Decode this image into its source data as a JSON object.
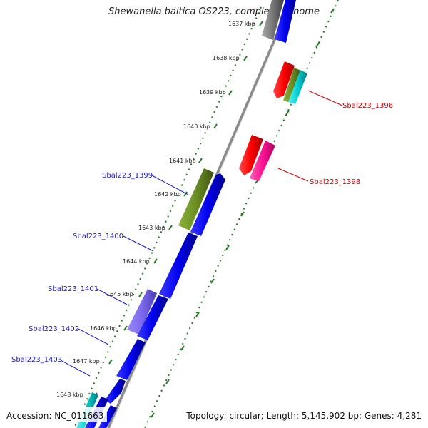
{
  "title": "Shewanella baltica OS223, complete genome",
  "accession": "Accession: NC_011663",
  "topology": "Topology: circular; Length: 5,145,902 bp; Genes: 4,281",
  "colors": {
    "backbone": "#8a8a8a",
    "ticks": "#1f7a1f",
    "tick_labels": "#222222",
    "gene_label_blue": "#1a1acc",
    "gene_label_red": "#cc0000"
  },
  "tick_labels": [
    "1637 kbp",
    "1638 kbp",
    "1639 kbp",
    "1640 kbp",
    "1641 kbp",
    "1642 kbp",
    "1643 kbp",
    "1644 kbp",
    "1645 kbp",
    "1646 kbp",
    "1647 kbp",
    "1648 kbp"
  ],
  "gene_labels": {
    "g1396": "Sbal223_1396",
    "g1398": "Sbal223_1398",
    "g1399": "Sbal223_1399",
    "g1400": "Sbal223_1400",
    "g1401": "Sbal223_1401",
    "g1402": "Sbal223_1402",
    "g1403": "Sbal223_1403"
  },
  "features": [
    {
      "name": "Sbal223_1399",
      "color": "#6b8e23"
    },
    {
      "name": "Sbal223_1401",
      "color": "#7b68ee"
    },
    {
      "name": "Sbal223_1396",
      "color": "#ff0000"
    },
    {
      "name": "Sbal223_1398",
      "color": "#ff1493"
    },
    {
      "name": "other-forward",
      "color": "#0000ff"
    },
    {
      "name": "other-cyan",
      "color": "#00ced1"
    },
    {
      "name": "other-grey",
      "color": "#777777"
    }
  ]
}
